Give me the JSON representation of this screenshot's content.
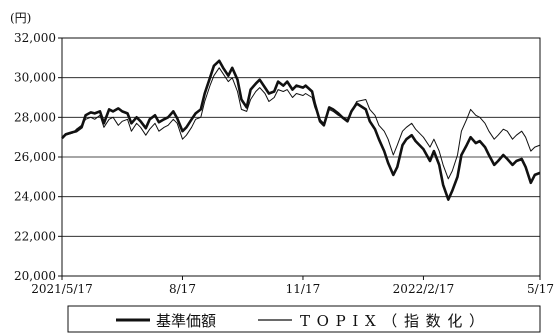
{
  "chart_data": {
    "type": "line",
    "title": "",
    "unit_label": "(円)",
    "xlabel": "",
    "ylabel": "",
    "ylim": [
      20000,
      32000
    ],
    "y_ticks": [
      "32,000",
      "30,000",
      "28,000",
      "26,000",
      "24,000",
      "22,000",
      "20,000"
    ],
    "y_tick_values": [
      32000,
      30000,
      28000,
      26000,
      24000,
      22000,
      20000
    ],
    "x_ticks": [
      "2021/5/17",
      "8/17",
      "11/17",
      "2022/2/17",
      "5/17"
    ],
    "x_tick_dates": [
      "2021-05-17",
      "2021-08-17",
      "2021-11-17",
      "2022-02-17",
      "2022-05-17"
    ],
    "xlim": [
      "2021-05-17",
      "2022-05-17"
    ],
    "grid": "horizontal",
    "legend_position": "bottom",
    "series": [
      {
        "name": "基準価額",
        "style": "thick",
        "color": "#111111",
        "points": [
          [
            "2021-05-17",
            26950
          ],
          [
            "2021-05-20",
            27150
          ],
          [
            "2021-05-25",
            27250
          ],
          [
            "2021-05-28",
            27300
          ],
          [
            "2021-06-01",
            27500
          ],
          [
            "2021-06-04",
            28100
          ],
          [
            "2021-06-08",
            28250
          ],
          [
            "2021-06-11",
            28200
          ],
          [
            "2021-06-15",
            28300
          ],
          [
            "2021-06-18",
            27700
          ],
          [
            "2021-06-22",
            28400
          ],
          [
            "2021-06-25",
            28300
          ],
          [
            "2021-06-29",
            28450
          ],
          [
            "2021-07-02",
            28300
          ],
          [
            "2021-07-06",
            28200
          ],
          [
            "2021-07-09",
            27700
          ],
          [
            "2021-07-13",
            28000
          ],
          [
            "2021-07-16",
            27800
          ],
          [
            "2021-07-20",
            27450
          ],
          [
            "2021-07-23",
            27900
          ],
          [
            "2021-07-27",
            28100
          ],
          [
            "2021-07-30",
            27750
          ],
          [
            "2021-08-03",
            27900
          ],
          [
            "2021-08-06",
            28000
          ],
          [
            "2021-08-10",
            28300
          ],
          [
            "2021-08-13",
            27950
          ],
          [
            "2021-08-17",
            27300
          ],
          [
            "2021-08-20",
            27500
          ],
          [
            "2021-08-24",
            27900
          ],
          [
            "2021-08-27",
            28200
          ],
          [
            "2021-08-31",
            28400
          ],
          [
            "2021-09-03",
            29200
          ],
          [
            "2021-09-07",
            30000
          ],
          [
            "2021-09-10",
            30600
          ],
          [
            "2021-09-14",
            30850
          ],
          [
            "2021-09-17",
            30500
          ],
          [
            "2021-09-21",
            30100
          ],
          [
            "2021-09-24",
            30500
          ],
          [
            "2021-09-28",
            29900
          ],
          [
            "2021-10-01",
            28900
          ],
          [
            "2021-10-05",
            28500
          ],
          [
            "2021-10-08",
            29400
          ],
          [
            "2021-10-12",
            29700
          ],
          [
            "2021-10-15",
            29900
          ],
          [
            "2021-10-19",
            29500
          ],
          [
            "2021-10-22",
            29200
          ],
          [
            "2021-10-26",
            29300
          ],
          [
            "2021-10-29",
            29800
          ],
          [
            "2021-11-02",
            29600
          ],
          [
            "2021-11-05",
            29800
          ],
          [
            "2021-11-09",
            29400
          ],
          [
            "2021-11-12",
            29600
          ],
          [
            "2021-11-17",
            29500
          ],
          [
            "2021-11-19",
            29600
          ],
          [
            "2021-11-24",
            29300
          ],
          [
            "2021-11-26",
            28700
          ],
          [
            "2021-11-30",
            27800
          ],
          [
            "2021-12-03",
            27600
          ],
          [
            "2021-12-07",
            28500
          ],
          [
            "2021-12-10",
            28400
          ],
          [
            "2021-12-14",
            28200
          ],
          [
            "2021-12-17",
            28000
          ],
          [
            "2021-12-21",
            27800
          ],
          [
            "2021-12-24",
            28300
          ],
          [
            "2021-12-28",
            28700
          ],
          [
            "2022-01-04",
            28400
          ],
          [
            "2022-01-07",
            27800
          ],
          [
            "2022-01-11",
            27400
          ],
          [
            "2022-01-14",
            26900
          ],
          [
            "2022-01-18",
            26300
          ],
          [
            "2022-01-21",
            25700
          ],
          [
            "2022-01-25",
            25100
          ],
          [
            "2022-01-28",
            25500
          ],
          [
            "2022-02-01",
            26600
          ],
          [
            "2022-02-04",
            26900
          ],
          [
            "2022-02-08",
            27100
          ],
          [
            "2022-02-11",
            26800
          ],
          [
            "2022-02-17",
            26400
          ],
          [
            "2022-02-22",
            25800
          ],
          [
            "2022-02-25",
            26300
          ],
          [
            "2022-03-01",
            25600
          ],
          [
            "2022-03-04",
            24600
          ],
          [
            "2022-03-08",
            23850
          ],
          [
            "2022-03-11",
            24300
          ],
          [
            "2022-03-15",
            25000
          ],
          [
            "2022-03-18",
            26100
          ],
          [
            "2022-03-22",
            26600
          ],
          [
            "2022-03-25",
            27000
          ],
          [
            "2022-03-29",
            26700
          ],
          [
            "2022-04-01",
            26800
          ],
          [
            "2022-04-05",
            26500
          ],
          [
            "2022-04-08",
            26100
          ],
          [
            "2022-04-12",
            25600
          ],
          [
            "2022-04-15",
            25800
          ],
          [
            "2022-04-19",
            26100
          ],
          [
            "2022-04-22",
            25900
          ],
          [
            "2022-04-26",
            25600
          ],
          [
            "2022-04-29",
            25800
          ],
          [
            "2022-05-03",
            25900
          ],
          [
            "2022-05-06",
            25500
          ],
          [
            "2022-05-10",
            24700
          ],
          [
            "2022-05-13",
            25100
          ],
          [
            "2022-05-17",
            25200
          ]
        ]
      },
      {
        "name": "TOPIX（指数化）",
        "style": "thin",
        "color": "#111111",
        "points": [
          [
            "2021-05-17",
            27000
          ],
          [
            "2021-05-20",
            27100
          ],
          [
            "2021-05-25",
            27200
          ],
          [
            "2021-05-28",
            27400
          ],
          [
            "2021-06-01",
            27600
          ],
          [
            "2021-06-04",
            27900
          ],
          [
            "2021-06-08",
            28000
          ],
          [
            "2021-06-11",
            27900
          ],
          [
            "2021-06-15",
            28100
          ],
          [
            "2021-06-18",
            27500
          ],
          [
            "2021-06-22",
            27900
          ],
          [
            "2021-06-25",
            28000
          ],
          [
            "2021-06-29",
            27600
          ],
          [
            "2021-07-02",
            27800
          ],
          [
            "2021-07-06",
            27900
          ],
          [
            "2021-07-09",
            27300
          ],
          [
            "2021-07-13",
            27700
          ],
          [
            "2021-07-16",
            27500
          ],
          [
            "2021-07-20",
            27100
          ],
          [
            "2021-07-23",
            27400
          ],
          [
            "2021-07-27",
            27700
          ],
          [
            "2021-07-30",
            27300
          ],
          [
            "2021-08-03",
            27500
          ],
          [
            "2021-08-06",
            27600
          ],
          [
            "2021-08-10",
            27900
          ],
          [
            "2021-08-13",
            27700
          ],
          [
            "2021-08-17",
            26900
          ],
          [
            "2021-08-20",
            27100
          ],
          [
            "2021-08-24",
            27500
          ],
          [
            "2021-08-27",
            27900
          ],
          [
            "2021-08-31",
            28000
          ],
          [
            "2021-09-03",
            28800
          ],
          [
            "2021-09-07",
            29600
          ],
          [
            "2021-09-10",
            30100
          ],
          [
            "2021-09-14",
            30500
          ],
          [
            "2021-09-17",
            30200
          ],
          [
            "2021-09-21",
            29800
          ],
          [
            "2021-09-24",
            30000
          ],
          [
            "2021-09-28",
            29300
          ],
          [
            "2021-10-01",
            28400
          ],
          [
            "2021-10-05",
            28300
          ],
          [
            "2021-10-08",
            28900
          ],
          [
            "2021-10-12",
            29300
          ],
          [
            "2021-10-15",
            29500
          ],
          [
            "2021-10-19",
            29200
          ],
          [
            "2021-10-22",
            28800
          ],
          [
            "2021-10-26",
            29000
          ],
          [
            "2021-10-29",
            29400
          ],
          [
            "2021-11-02",
            29300
          ],
          [
            "2021-11-05",
            29400
          ],
          [
            "2021-11-09",
            29000
          ],
          [
            "2021-11-12",
            29200
          ],
          [
            "2021-11-17",
            29100
          ],
          [
            "2021-11-19",
            29200
          ],
          [
            "2021-11-24",
            29000
          ],
          [
            "2021-11-26",
            28500
          ],
          [
            "2021-11-30",
            27900
          ],
          [
            "2021-12-03",
            27700
          ],
          [
            "2021-12-07",
            28400
          ],
          [
            "2021-12-10",
            28300
          ],
          [
            "2021-12-14",
            28100
          ],
          [
            "2021-12-17",
            28000
          ],
          [
            "2021-12-21",
            27900
          ],
          [
            "2021-12-24",
            28300
          ],
          [
            "2021-12-28",
            28800
          ],
          [
            "2022-01-04",
            28900
          ],
          [
            "2022-01-07",
            28400
          ],
          [
            "2022-01-11",
            28100
          ],
          [
            "2022-01-14",
            27600
          ],
          [
            "2022-01-18",
            27300
          ],
          [
            "2022-01-21",
            26900
          ],
          [
            "2022-01-25",
            26100
          ],
          [
            "2022-01-28",
            26600
          ],
          [
            "2022-02-01",
            27300
          ],
          [
            "2022-02-04",
            27500
          ],
          [
            "2022-02-08",
            27700
          ],
          [
            "2022-02-11",
            27400
          ],
          [
            "2022-02-17",
            27000
          ],
          [
            "2022-02-22",
            26500
          ],
          [
            "2022-02-25",
            26900
          ],
          [
            "2022-03-01",
            26300
          ],
          [
            "2022-03-04",
            25600
          ],
          [
            "2022-03-08",
            24900
          ],
          [
            "2022-03-11",
            25300
          ],
          [
            "2022-03-15",
            26100
          ],
          [
            "2022-03-18",
            27300
          ],
          [
            "2022-03-22",
            27900
          ],
          [
            "2022-03-25",
            28400
          ],
          [
            "2022-03-29",
            28100
          ],
          [
            "2022-04-01",
            28000
          ],
          [
            "2022-04-05",
            27700
          ],
          [
            "2022-04-08",
            27300
          ],
          [
            "2022-04-12",
            26900
          ],
          [
            "2022-04-15",
            27100
          ],
          [
            "2022-04-19",
            27400
          ],
          [
            "2022-04-22",
            27300
          ],
          [
            "2022-04-26",
            26900
          ],
          [
            "2022-04-29",
            27100
          ],
          [
            "2022-05-03",
            27300
          ],
          [
            "2022-05-06",
            27000
          ],
          [
            "2022-05-10",
            26300
          ],
          [
            "2022-05-13",
            26500
          ],
          [
            "2022-05-17",
            26600
          ]
        ]
      }
    ]
  }
}
